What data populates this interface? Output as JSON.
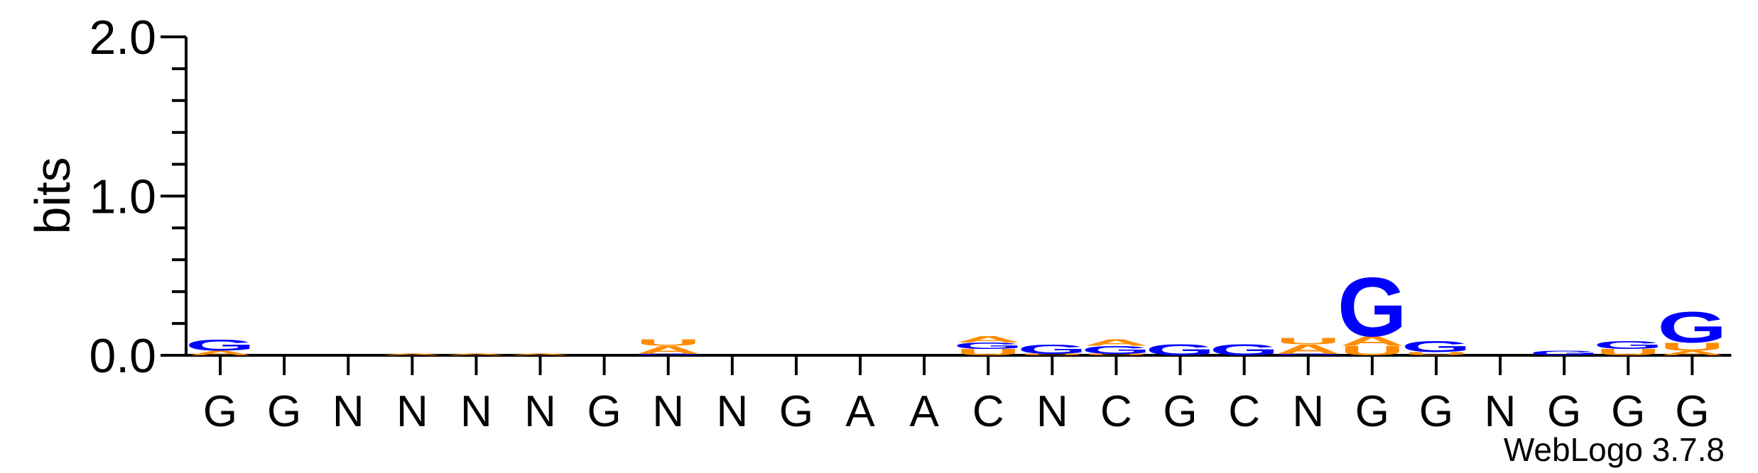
{
  "chart_data": {
    "type": "sequence-logo",
    "ylabel": "bits",
    "ylim": [
      0.0,
      2.0
    ],
    "y_ticks": [
      "0.0",
      "1.0",
      "2.0"
    ],
    "positions": [
      "G",
      "G",
      "N",
      "N",
      "N",
      "N",
      "G",
      "N",
      "N",
      "G",
      "A",
      "A",
      "C",
      "N",
      "C",
      "G",
      "C",
      "N",
      "G",
      "G",
      "N",
      "G",
      "G",
      "G"
    ],
    "stacks": [
      [
        {
          "letter": "A",
          "bits": 0.03
        },
        {
          "letter": "G",
          "bits": 0.07
        }
      ],
      [],
      [],
      [
        {
          "letter": "A",
          "bits": 0.01
        }
      ],
      [
        {
          "letter": "A",
          "bits": 0.01
        }
      ],
      [
        {
          "letter": "A",
          "bits": 0.01
        }
      ],
      [],
      [
        {
          "letter": "G",
          "bits": 0.01
        },
        {
          "letter": "A",
          "bits": 0.05
        },
        {
          "letter": "U",
          "bits": 0.04
        }
      ],
      [],
      [],
      [],
      [],
      [
        {
          "letter": "U",
          "bits": 0.04
        },
        {
          "letter": "G",
          "bits": 0.04
        },
        {
          "letter": "A",
          "bits": 0.04
        }
      ],
      [
        {
          "letter": "U",
          "bits": 0.01
        },
        {
          "letter": "G",
          "bits": 0.06
        }
      ],
      [
        {
          "letter": "U",
          "bits": 0.01
        },
        {
          "letter": "G",
          "bits": 0.05
        },
        {
          "letter": "A",
          "bits": 0.04
        }
      ],
      [
        {
          "letter": "G",
          "bits": 0.07
        }
      ],
      [
        {
          "letter": "G",
          "bits": 0.07
        }
      ],
      [
        {
          "letter": "G",
          "bits": 0.01
        },
        {
          "letter": "A",
          "bits": 0.06
        },
        {
          "letter": "U",
          "bits": 0.04
        }
      ],
      [
        {
          "letter": "U",
          "bits": 0.06
        },
        {
          "letter": "A",
          "bits": 0.06
        },
        {
          "letter": "G",
          "bits": 0.38
        }
      ],
      [
        {
          "letter": "U",
          "bits": 0.02
        },
        {
          "letter": "G",
          "bits": 0.07
        }
      ],
      [],
      [
        {
          "letter": "G",
          "bits": 0.03
        }
      ],
      [
        {
          "letter": "U",
          "bits": 0.04
        },
        {
          "letter": "G",
          "bits": 0.05
        }
      ],
      [
        {
          "letter": "A",
          "bits": 0.03
        },
        {
          "letter": "U",
          "bits": 0.05
        },
        {
          "letter": "G",
          "bits": 0.2
        }
      ]
    ],
    "colors": {
      "G": "#0000ff",
      "A": "#ff8c00",
      "U": "#ff8c00",
      "C": "#0000ff"
    },
    "grid": false
  },
  "credit": "WebLogo 3.7.8"
}
